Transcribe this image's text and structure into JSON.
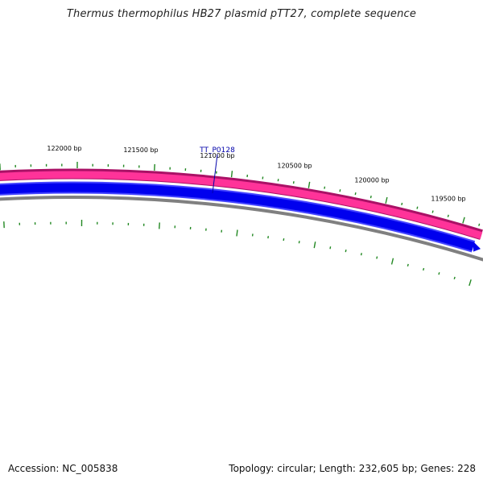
{
  "title": "Thermus thermophilus HB27 plasmid pTT27, complete sequence",
  "footer": {
    "accession": "Accession: NC_005838",
    "summary": "Topology: circular; Length: 232,605 bp; Genes: 228"
  },
  "map": {
    "gene_label": "TT_P0128",
    "ruler_labels": [
      "122000 bp",
      "121500 bp",
      "121000 bp",
      "120500 bp",
      "120000 bp",
      "119500 bp"
    ],
    "colors": {
      "forward_track": "#ff3399",
      "forward_track_edge": "#aa1166",
      "reverse_track": "#0000ee",
      "reverse_track_edge": "#4444ff",
      "backbone": "#808080",
      "tick": "#228822",
      "gene_label": "#0000aa",
      "ruler_text": "#000000"
    }
  }
}
